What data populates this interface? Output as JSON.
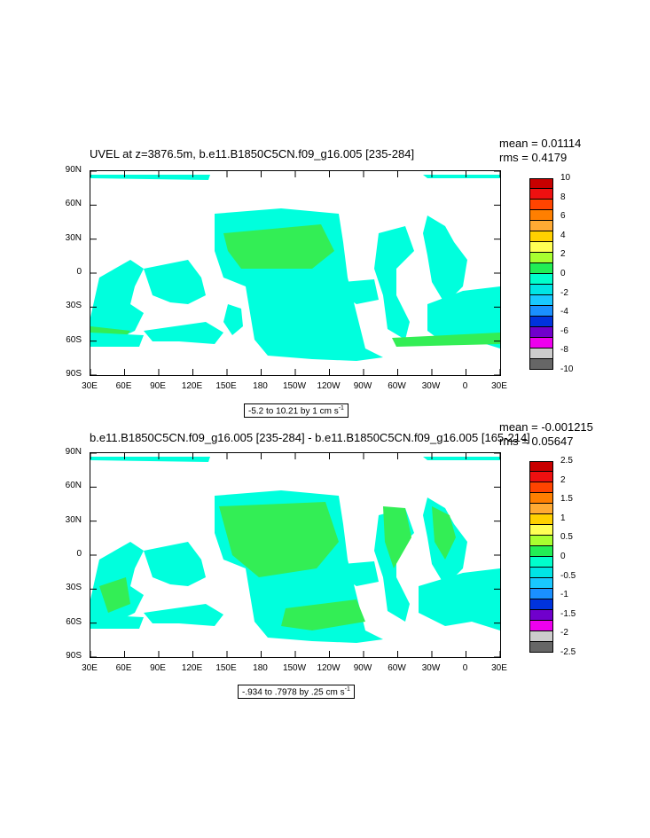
{
  "panels": [
    {
      "title": "UVEL at z=3876.5m, b.e11.B1850C5CN.f09_g16.005 [235-284]",
      "mean": "mean = 0.01114",
      "rms": "rms = 0.4179",
      "range_text": "-5.2 to 10.21 by 1 cm s",
      "range_unit_sup": "-1",
      "colorbar_labels": [
        "10",
        "8",
        "6",
        "4",
        "2",
        "0",
        "-2",
        "-4",
        "-6",
        "-8",
        "-10"
      ]
    },
    {
      "title": "b.e11.B1850C5CN.f09_g16.005 [235-284] - b.e11.B1850C5CN.f09_g16.005 [165-214]",
      "mean": "mean = -0.001215",
      "rms": "rms = 0.05647",
      "range_text": "-.934 to .7978 by .25 cm s",
      "range_unit_sup": "-1",
      "colorbar_labels": [
        "2.5",
        "2",
        "1.5",
        "1",
        "0.5",
        "0",
        "-0.5",
        "-1",
        "-1.5",
        "-2",
        "-2.5"
      ]
    }
  ],
  "lat_labels": [
    "90N",
    "60N",
    "30N",
    "0",
    "30S",
    "60S",
    "90S"
  ],
  "lon_labels": [
    "30E",
    "60E",
    "90E",
    "120E",
    "150E",
    "180",
    "150W",
    "120W",
    "90W",
    "60W",
    "30W",
    "0",
    "30E"
  ],
  "colorbar_colors": [
    "#c80000",
    "#ee1010",
    "#ff4400",
    "#ff7f00",
    "#ffaa33",
    "#ffd000",
    "#ffff55",
    "#a8ff30",
    "#22ee55",
    "#00ffcc",
    "#00e5e5",
    "#19c8ff",
    "#1a90ff",
    "#0033dd",
    "#7000cc",
    "#ee00ee",
    "#cccccc",
    "#666666"
  ],
  "land_color": "#ffffff",
  "ocean_colors": {
    "cyan": "#00ffdd",
    "green": "#33ee55"
  }
}
